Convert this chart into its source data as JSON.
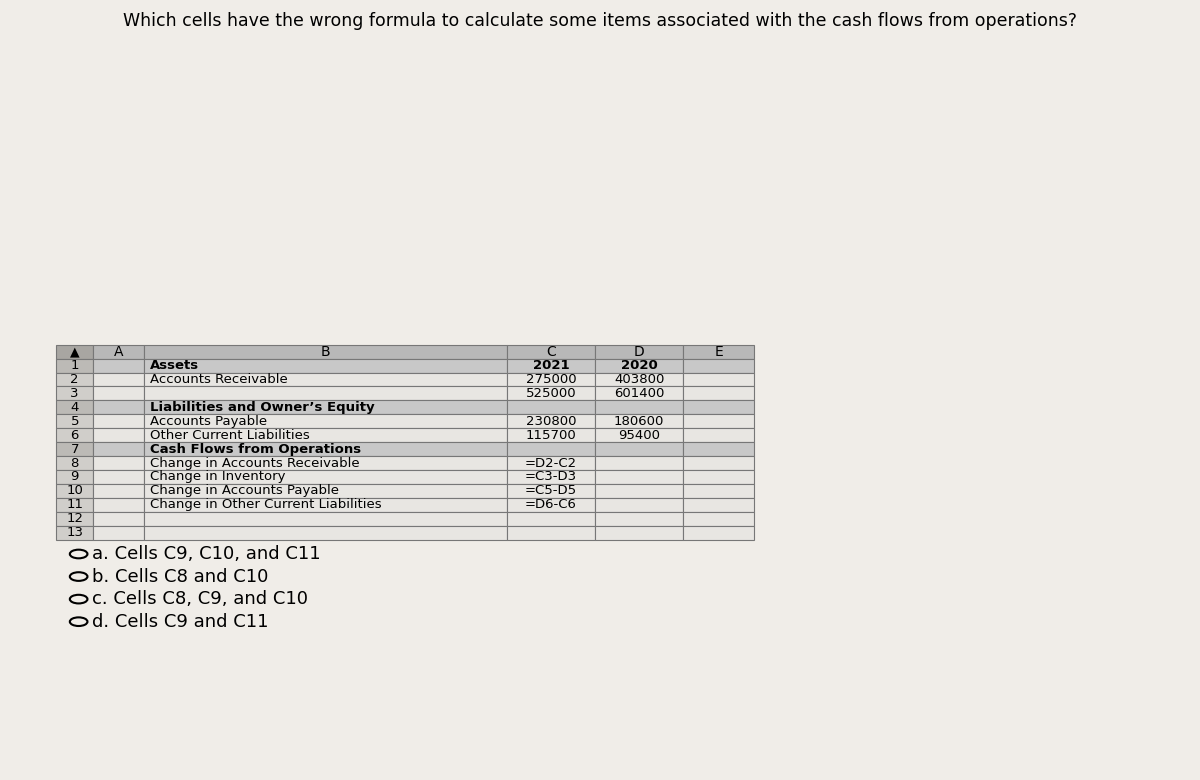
{
  "title": "Which cells have the wrong formula to calculate some items associated with the cash flows from operations?",
  "title_fontsize": 12.5,
  "page_bg": "#f0ede8",
  "header_bg": "#b8b8b8",
  "section_bg": "#c8c8c8",
  "normal_bg": "#e8e6e2",
  "rownumber_bg": "#d0ceca",
  "section_rownumber_bg": "#bcbab6",
  "corner_bg": "#a8a6a2",
  "row_numbers": [
    "1",
    "2",
    "3",
    "4",
    "5",
    "6",
    "7",
    "8",
    "9",
    "10",
    "11",
    "12",
    "13"
  ],
  "corrected_rows": [
    [
      "",
      "Assets",
      "2021",
      "2020",
      ""
    ],
    [
      "",
      "Accounts Receivable",
      "275000",
      "403800",
      ""
    ],
    [
      "",
      "",
      "525000",
      "601400",
      ""
    ],
    [
      "",
      "Liabilities and Owner’s Equity",
      "",
      "",
      ""
    ],
    [
      "",
      "Accounts Payable",
      "230800",
      "180600",
      ""
    ],
    [
      "",
      "Other Current Liabilities",
      "115700",
      "95400",
      ""
    ],
    [
      "",
      "Cash Flows from Operations",
      "",
      "",
      ""
    ],
    [
      "",
      "Change in Accounts Receivable",
      "=D2-C2",
      "",
      ""
    ],
    [
      "",
      "Change in Inventory",
      "=C3-D3",
      "",
      ""
    ],
    [
      "",
      "Change in Accounts Payable",
      "=C5-D5",
      "",
      ""
    ],
    [
      "",
      "Change in Other Current Liabilities",
      "=D6-C6",
      "",
      ""
    ],
    [
      "",
      "",
      "",
      "",
      ""
    ],
    [
      "",
      "",
      "",
      "",
      ""
    ]
  ],
  "bold_rows": [
    0,
    3,
    6
  ],
  "col_names": [
    "A",
    "B",
    "C",
    "D",
    "E"
  ],
  "answers": [
    "a. Cells C9, C10, and C11",
    "b. Cells C8 and C10",
    "c. Cells C8, C9, and C10",
    "d. Cells C9 and C11"
  ]
}
